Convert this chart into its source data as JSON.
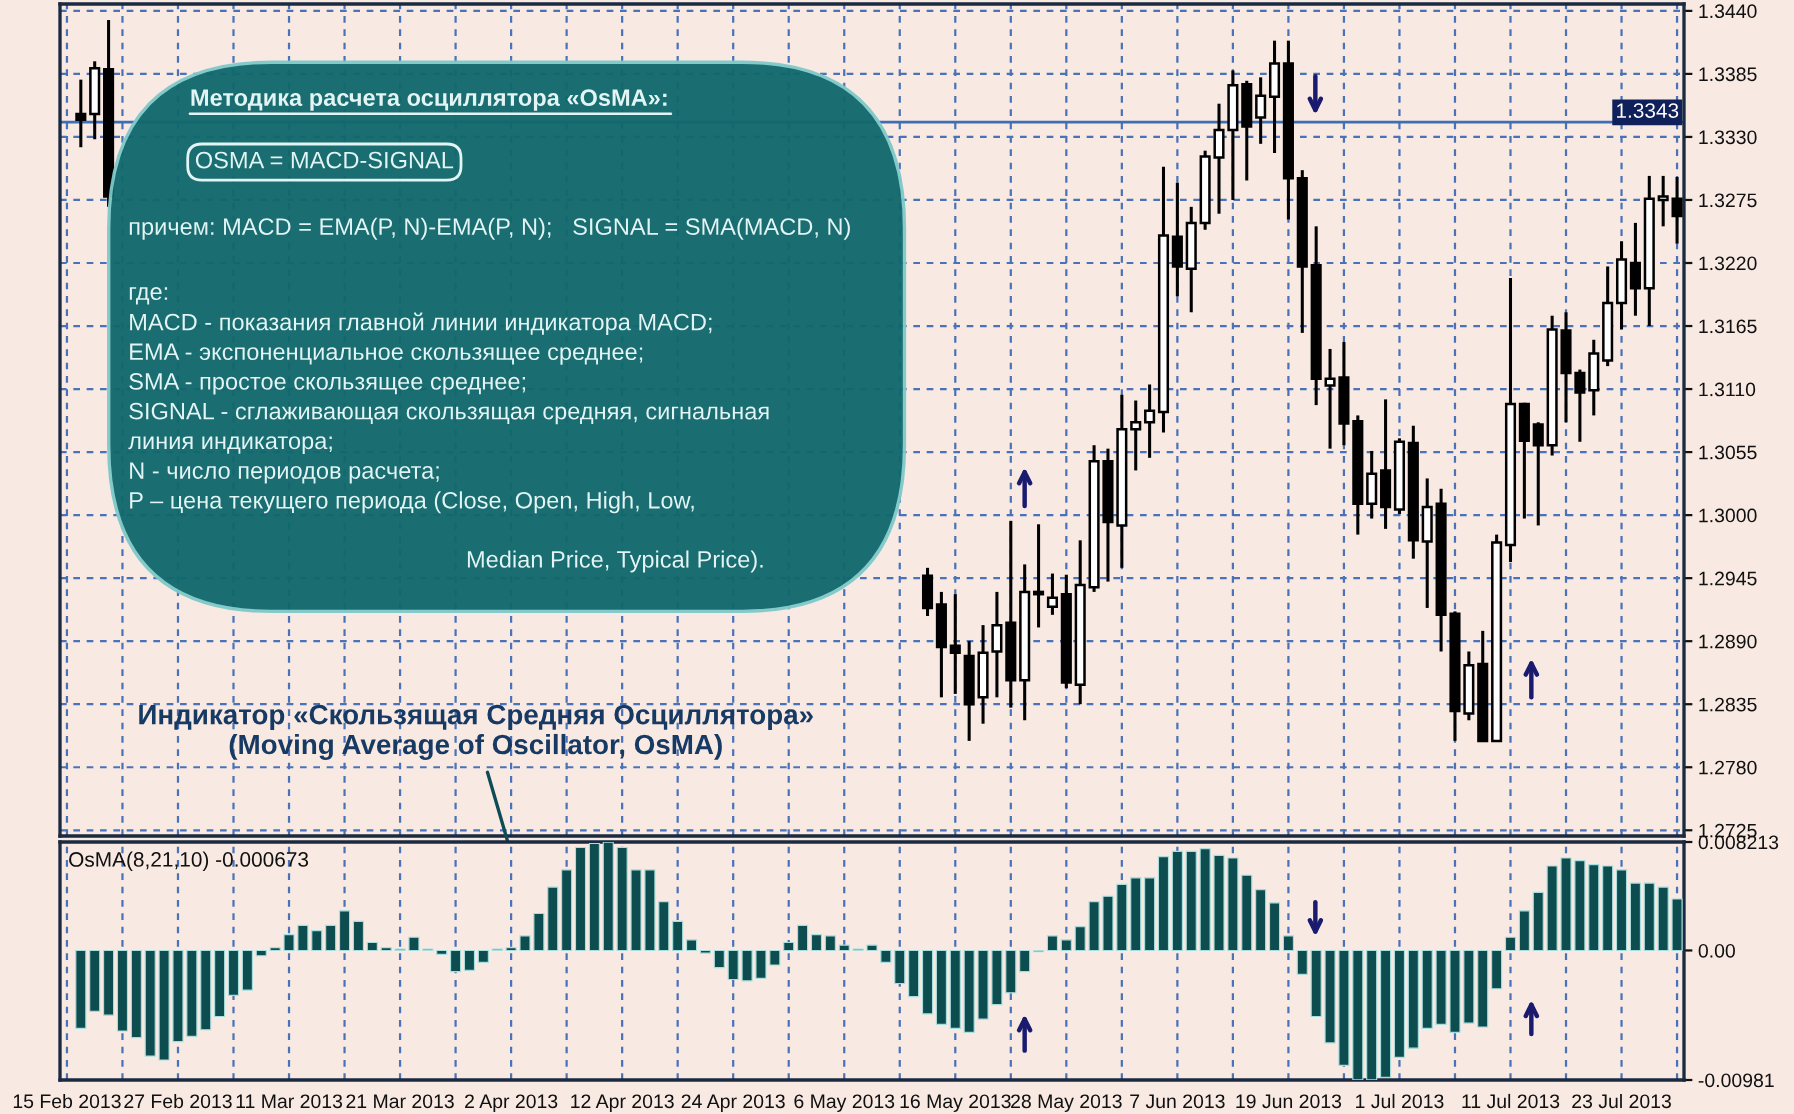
{
  "chart_data": [
    {
      "type": "candlestick",
      "categories": [
        null,
        null,
        null,
        null,
        null,
        null,
        null,
        null,
        null,
        null,
        null,
        null,
        null,
        null,
        null,
        null,
        null,
        null,
        null,
        null,
        null,
        null,
        null,
        null,
        null,
        null,
        null,
        null,
        null,
        null,
        null,
        null,
        null,
        null,
        null,
        null,
        null,
        null,
        null,
        null,
        null,
        null,
        null,
        null,
        null,
        null,
        null,
        null,
        null,
        null,
        null,
        null,
        null,
        null,
        null,
        null,
        null,
        null,
        null,
        null,
        null,
        null,
        null,
        null,
        null,
        null,
        null,
        null,
        null,
        null,
        null,
        null,
        null,
        null,
        null,
        null,
        null,
        null,
        null,
        null,
        null,
        null,
        null,
        null,
        null,
        null,
        null,
        null,
        null,
        null,
        null,
        null,
        null,
        null,
        null,
        null,
        null,
        null,
        null,
        null,
        null,
        null,
        null,
        null,
        null,
        null,
        null,
        null,
        null,
        null,
        null,
        null,
        null,
        null,
        null,
        null,
        null
      ],
      "ohlc": [
        null,
        [
          1.335,
          1.338,
          1.3321,
          1.3345
        ],
        [
          1.335,
          1.3396,
          1.3328,
          1.339
        ],
        [
          1.3389,
          1.3432,
          1.3269,
          1.3278
        ],
        null,
        null,
        null,
        null,
        null,
        null,
        null,
        null,
        null,
        null,
        null,
        null,
        null,
        null,
        null,
        null,
        null,
        null,
        null,
        null,
        null,
        null,
        null,
        null,
        null,
        null,
        null,
        null,
        null,
        null,
        null,
        null,
        null,
        null,
        null,
        null,
        null,
        null,
        null,
        null,
        null,
        null,
        null,
        null,
        null,
        null,
        null,
        null,
        null,
        null,
        null,
        null,
        null,
        null,
        null,
        null,
        null,
        null,
        [
          1.2947,
          1.2954,
          1.2912,
          1.2919
        ],
        [
          1.2922,
          1.2933,
          1.2841,
          1.2885
        ],
        [
          1.2886,
          1.2931,
          1.2844,
          1.288
        ],
        [
          1.2877,
          1.289,
          1.2803,
          1.2835
        ],
        [
          1.2841,
          1.2904,
          1.2818,
          1.288
        ],
        [
          1.2881,
          1.2933,
          1.2841,
          1.2904
        ],
        [
          1.2906,
          1.2995,
          1.2832,
          1.2856
        ],
        [
          1.2856,
          1.2957,
          1.2821,
          1.2933
        ],
        [
          1.2931,
          1.2992,
          1.2902,
          1.2933
        ],
        [
          1.292,
          1.2949,
          1.2913,
          1.2928
        ],
        [
          1.2931,
          1.2948,
          1.2849,
          1.2854
        ],
        [
          1.2852,
          1.2978,
          1.2835,
          1.2939
        ],
        [
          1.2937,
          1.3061,
          1.2933,
          1.3047
        ],
        [
          1.3047,
          1.3058,
          1.2942,
          1.2994
        ],
        [
          1.2991,
          1.3105,
          1.2954,
          1.3075
        ],
        [
          1.3075,
          1.31,
          1.3039,
          1.3081
        ],
        [
          1.3081,
          1.3114,
          1.305,
          1.3091
        ],
        [
          1.309,
          1.3304,
          1.3072,
          1.3244
        ],
        [
          1.3243,
          1.329,
          1.3191,
          1.3217
        ],
        [
          1.3215,
          1.3269,
          1.3177,
          1.3255
        ],
        [
          1.3255,
          1.3318,
          1.3249,
          1.3313
        ],
        [
          1.3312,
          1.3359,
          1.3263,
          1.3336
        ],
        [
          1.3336,
          1.3388,
          1.3275,
          1.3375
        ],
        [
          1.3376,
          1.3379,
          1.3292,
          1.3339
        ],
        [
          1.3347,
          1.3382,
          1.3324,
          1.3366
        ],
        [
          1.3365,
          1.3414,
          1.3316,
          1.3394
        ],
        [
          1.3394,
          1.3414,
          1.3258,
          1.3294
        ],
        [
          1.3294,
          1.3301,
          1.3159,
          1.3217
        ],
        [
          1.3218,
          1.3252,
          1.3096,
          1.3119
        ],
        [
          1.3113,
          1.3145,
          1.3058,
          1.3119
        ],
        [
          1.312,
          1.3151,
          1.3061,
          1.308
        ],
        [
          1.3082,
          1.3087,
          1.2983,
          1.301
        ],
        [
          1.301,
          1.3056,
          1.2997,
          1.3036
        ],
        [
          1.3039,
          1.3101,
          1.2988,
          1.3007
        ],
        [
          1.3005,
          1.3067,
          1.3001,
          1.3064
        ],
        [
          1.3063,
          1.3078,
          1.2962,
          1.2978
        ],
        [
          1.2977,
          1.3032,
          1.2919,
          1.3007
        ],
        [
          1.301,
          1.3023,
          1.2881,
          1.2913
        ],
        [
          1.2914,
          1.2916,
          1.2803,
          1.2829
        ],
        [
          1.2827,
          1.2881,
          1.2821,
          1.2869
        ],
        [
          1.287,
          1.2899,
          1.2803,
          1.2803
        ],
        [
          1.2803,
          1.2983,
          1.2803,
          1.2976
        ],
        [
          1.2974,
          1.3207,
          1.2959,
          1.3097
        ],
        [
          1.3097,
          1.3098,
          1.2997,
          1.3065
        ],
        [
          1.3079,
          1.3081,
          1.2991,
          1.3061
        ],
        [
          1.3061,
          1.3174,
          1.3052,
          1.3162
        ],
        [
          1.3161,
          1.3177,
          1.3081,
          1.3124
        ],
        [
          1.3124,
          1.3127,
          1.3064,
          1.3107
        ],
        [
          1.3109,
          1.3153,
          1.3087,
          1.3141
        ],
        [
          1.3135,
          1.3217,
          1.313,
          1.3185
        ],
        [
          1.3185,
          1.3239,
          1.3162,
          1.3223
        ],
        [
          1.322,
          1.3255,
          1.3174,
          1.3198
        ],
        [
          1.3198,
          1.3296,
          1.3165,
          1.3276
        ],
        [
          1.3275,
          1.3296,
          1.3252,
          1.3278
        ],
        [
          1.3276,
          1.3295,
          1.3237,
          1.3261
        ]
      ],
      "ylim": [
        1.272,
        1.3446
      ],
      "yticks": [
        {
          "value": 1.344,
          "label": "1.3440"
        },
        {
          "value": 1.3385,
          "label": "1.3385"
        },
        {
          "value": 1.333,
          "label": "1.3330"
        },
        {
          "value": 1.3275,
          "label": "1.3275"
        },
        {
          "value": 1.322,
          "label": "1.3220"
        },
        {
          "value": 1.3165,
          "label": "1.3165"
        },
        {
          "value": 1.311,
          "label": "1.3110"
        },
        {
          "value": 1.3055,
          "label": "1.3055"
        },
        {
          "value": 1.3,
          "label": "1.3000"
        },
        {
          "value": 1.2945,
          "label": "1.2945"
        },
        {
          "value": 1.289,
          "label": "1.2890"
        },
        {
          "value": 1.2835,
          "label": "1.2835"
        },
        {
          "value": 1.278,
          "label": "1.2780"
        },
        {
          "value": 1.2725,
          "label": "1.2725"
        }
      ],
      "grid": true,
      "tick_labels": "y",
      "ref_lines": [
        {
          "axis": "y",
          "value": 1.3343,
          "label": "1.3343",
          "color": "#3d6fb6"
        }
      ],
      "annotations": [
        "Методика расчета осциллятора «OsMA»:",
        "OSMA = MACD-SIGNAL",
        "причем: MACD = EMA(P, N)-EMA(P, N);   SIGNAL = SMA(MACD, N)",
        "где:\nMACD - показания главной линии индикатора MACD;\nEMA - экспоненциальное скользящее среднее;\nSMA - простое скользящее среднее;\nSIGNAL - сглаживающая скользящая средняя, сигнальная\nлиния индикатора;\nN - число периодов расчета;\nP – цена текущего периода (Close, Open, High, Low,",
        "Median Price, Typical Price).",
        "Индикатор «Скользящая Средняя Осциллятора»\n(Moving Average of Oscillator, OsMA)"
      ]
    },
    {
      "type": "bar",
      "title": "OsMA(8,21,10) -0.000673",
      "categories": [
        "15 Feb 2013",
        null,
        null,
        null,
        null,
        null,
        null,
        null,
        "27 Feb 2013",
        null,
        null,
        null,
        null,
        null,
        null,
        null,
        "11 Mar 2013",
        null,
        null,
        null,
        null,
        null,
        null,
        null,
        "21 Mar 2013",
        null,
        null,
        null,
        null,
        null,
        null,
        null,
        "2 Apr 2013",
        null,
        null,
        null,
        null,
        null,
        null,
        null,
        "12 Apr 2013",
        null,
        null,
        null,
        null,
        null,
        null,
        null,
        "24 Apr 2013",
        null,
        null,
        null,
        null,
        null,
        null,
        null,
        "6 May 2013",
        null,
        null,
        null,
        null,
        null,
        null,
        null,
        "16 May 2013",
        null,
        null,
        null,
        null,
        null,
        null,
        null,
        "28 May 2013",
        null,
        null,
        null,
        null,
        null,
        null,
        null,
        "7 Jun 2013",
        null,
        null,
        null,
        null,
        null,
        null,
        null,
        "19 Jun 2013",
        null,
        null,
        null,
        null,
        null,
        null,
        null,
        "1 Jul 2013",
        null,
        null,
        null,
        null,
        null,
        null,
        null,
        "11 Jul 2013",
        null,
        null,
        null,
        null,
        null,
        null,
        null,
        "23 Jul 2013",
        null,
        null,
        null,
        null
      ],
      "values": [
        null,
        -0.0059,
        -0.0046,
        -0.0049,
        -0.0061,
        -0.0066,
        -0.008,
        -0.0083,
        -0.0069,
        -0.0065,
        -0.006,
        -0.005,
        -0.0034,
        -0.003,
        -0.0004,
        0.0002,
        0.0012,
        0.0019,
        0.0015,
        0.0019,
        0.003,
        0.0022,
        0.0006,
        0.0002,
        0.0001,
        0.001,
        0.0001,
        -0.0003,
        -0.0016,
        -0.0015,
        -0.0009,
        0.0001,
        0.0002,
        0.0011,
        0.0028,
        0.0048,
        0.0061,
        0.0078,
        0.0081,
        0.0082,
        0.0078,
        0.0061,
        0.0061,
        0.0037,
        0.0022,
        0.0008,
        -0.0002,
        -0.0013,
        -0.0022,
        -0.0023,
        -0.0021,
        -0.0011,
        0.0006,
        0.0019,
        0.0012,
        0.0011,
        0.0004,
        0.0001,
        0.0004,
        -0.0009,
        -0.0025,
        -0.0035,
        -0.0048,
        -0.0056,
        -0.0059,
        -0.0062,
        -0.0052,
        -0.0041,
        -0.0032,
        -0.0016,
        -0.0001,
        0.0011,
        0.0008,
        0.0018,
        0.0037,
        0.0041,
        0.005,
        0.0055,
        0.0055,
        0.0071,
        0.0075,
        0.0075,
        0.0077,
        0.0072,
        0.007,
        0.0057,
        0.0046,
        0.0036,
        0.0011,
        -0.0018,
        -0.005,
        -0.007,
        -0.0087,
        -0.0098,
        -0.0098,
        -0.0096,
        -0.0081,
        -0.0074,
        -0.0059,
        -0.0056,
        -0.0062,
        -0.0055,
        -0.0058,
        -0.0029,
        0.001,
        0.003,
        0.0044,
        0.0064,
        0.007,
        0.0068,
        0.0065,
        0.0064,
        0.0061,
        0.0051,
        0.0051,
        0.0048,
        0.0039
      ],
      "color": "#0d4d4f",
      "ylim": [
        -0.00981,
        0.008213
      ],
      "yticks": [
        {
          "value": 0.008213,
          "label": "0.008213"
        },
        {
          "value": 0,
          "label": "0.00"
        },
        {
          "value": -0.00981,
          "label": "-0.00981"
        }
      ],
      "grid": "x"
    }
  ]
}
